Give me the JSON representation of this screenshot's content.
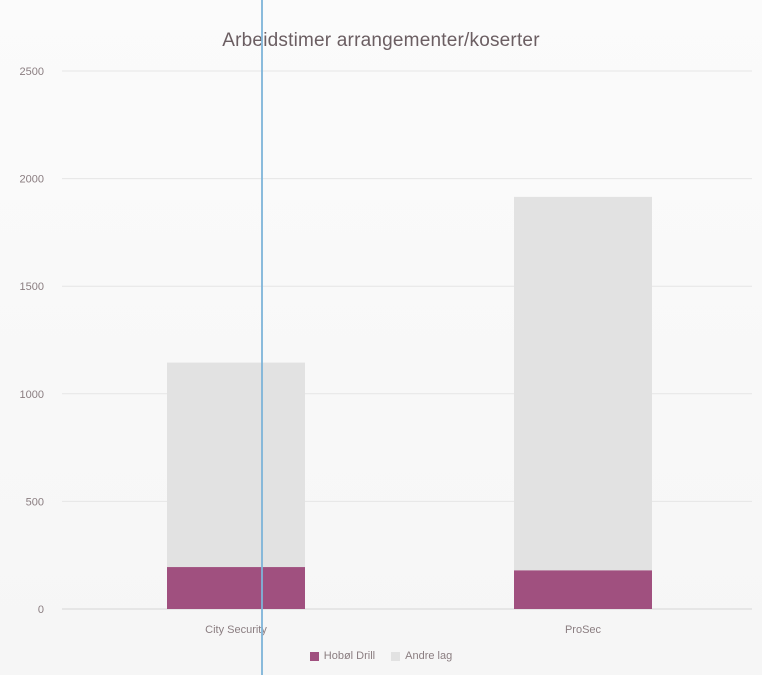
{
  "chart_data": {
    "type": "bar",
    "stacked": true,
    "title": "Arbeidstimer arrangementer/koserter",
    "categories": [
      "City Security",
      "ProSec"
    ],
    "series": [
      {
        "name": "Hobøl Drill",
        "values": [
          195,
          180
        ],
        "color": "#a0507f"
      },
      {
        "name": "Andre lag",
        "values": [
          950,
          1735
        ],
        "color": "#e2e2e2"
      }
    ],
    "ylim": [
      0,
      2500
    ],
    "yticks": [
      "0",
      "500",
      "1000",
      "1500",
      "2000",
      "2500"
    ],
    "grid": true,
    "legend": "bottom"
  }
}
